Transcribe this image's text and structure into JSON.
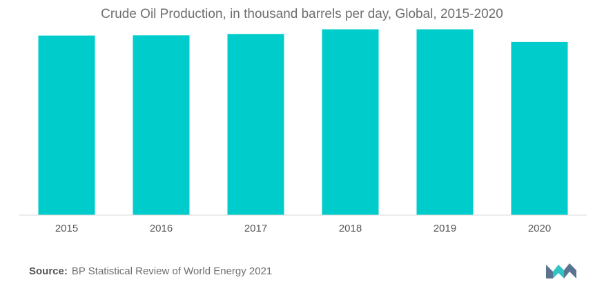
{
  "chart_data": {
    "type": "bar",
    "title": "Crude Oil Production, in thousand barrels per day, Global, 2015-2020",
    "categories": [
      "2015",
      "2016",
      "2017",
      "2018",
      "2019",
      "2020"
    ],
    "values": [
      91700,
      91800,
      92500,
      94900,
      94900,
      88400
    ],
    "ylim": [
      0,
      100000
    ],
    "xlabel": "",
    "ylabel": "",
    "grid": false,
    "legend": "none",
    "bar_color": "#00CCCC"
  },
  "footer": {
    "source_label": "Source:",
    "source_text": "BP Statistical Review of World Energy 2021"
  },
  "colors": {
    "bar": "#00CCCC",
    "axis": "#d9d9d9",
    "text": "#6e6e6e",
    "logo_dark": "#5a7390",
    "logo_teal": "#2ec4c4"
  },
  "logo": {
    "icon": "mordor-intelligence-logo-icon"
  }
}
